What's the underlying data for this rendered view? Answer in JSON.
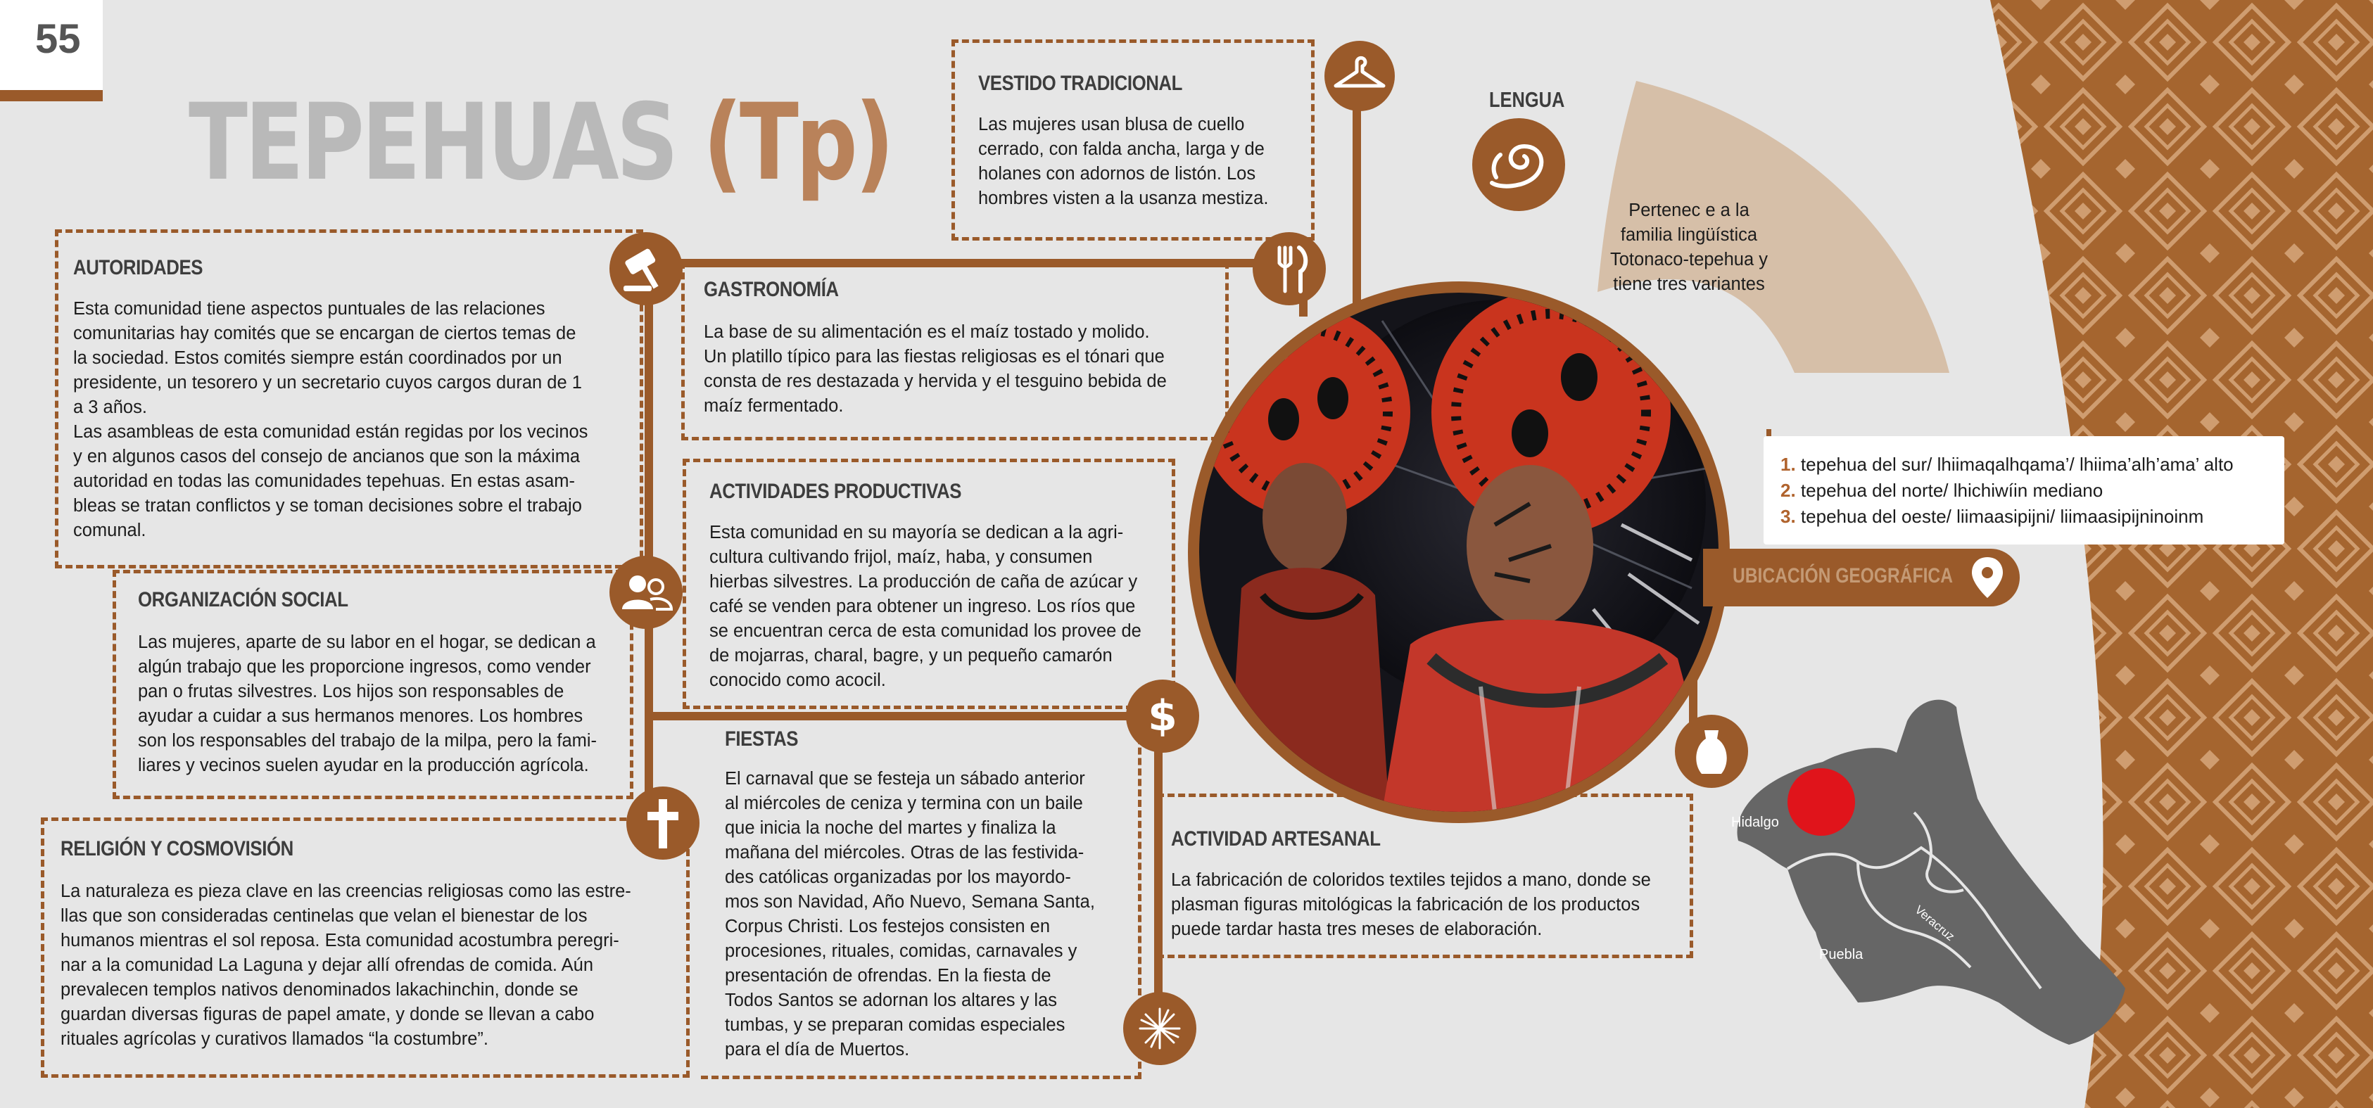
{
  "page_number": "55",
  "title": {
    "main": "TEPEHUAS",
    "abbr": "(Tp)"
  },
  "sections": {
    "vestido": {
      "heading": "VESTIDO TRADICIONAL",
      "text": "Las mujeres usan blusa de cuello\ncerrado, con falda ancha, larga y de\nholanes con adornos de listón. Los\nhombres visten a la usanza mestiza."
    },
    "autoridades": {
      "heading": "AUTORIDADES",
      "text": "Esta comunidad tiene aspectos puntuales de las relaciones\ncomunitarias hay comités que se encargan de ciertos temas de\nla sociedad. Estos comités siempre están coordinados por un\npresidente, un tesorero y un secretario cuyos cargos duran de 1\na 3 años.\nLas asambleas de esta comunidad están regidas por los vecinos\ny en algunos casos del consejo de ancianos que son la máxima\nautoridad en todas las comunidades tepehuas. En estas asam-\nbleas se tratan conflictos y se toman decisiones sobre el trabajo\ncomunal."
    },
    "gastronomia": {
      "heading": "GASTRONOMÍA",
      "text": "La base de su alimentación es el maíz tostado y molido.\nUn platillo típico para las fiestas religiosas es el tónari que\nconsta de res destazada y hervida y el tesguino bebida de\nmaíz fermentado."
    },
    "actividades": {
      "heading": "ACTIVIDADES PRODUCTIVAS",
      "text": "Esta comunidad en su mayoría se dedican a la agri-\ncultura cultivando frijol, maíz, haba, y consumen\nhierbas silvestres. La producción de caña de azúcar y\ncafé se venden para obtener un ingreso. Los ríos que\nse encuentran cerca de esta comunidad los provee de\nde mojarras, charal, bagre, y un pequeño camarón\nconocido como acocil."
    },
    "organizacion": {
      "heading": "ORGANIZACIÓN SOCIAL",
      "text": "Las mujeres, aparte de su labor en el hogar, se dedican a\nalgún trabajo que les proporcione ingresos, como vender\npan o frutas silvestres. Los hijos son responsables de\nayudar a cuidar a sus hermanos menores. Los hombres\nson los responsables del trabajo de la milpa, pero la fami-\nliares y vecinos suelen ayudar  en la producción agrícola."
    },
    "fiestas": {
      "heading": "FIESTAS",
      "text": "El carnaval que se festeja un sábado anterior\nal miércoles de ceniza y termina con un baile\nque inicia la noche del martes y finaliza la\nmañana del miércoles. Otras de las festivida-\ndes católicas organizadas por los mayordo-\nmos son Navidad, Año Nuevo, Semana Santa,\nCorpus Christi. Los festejos consisten en\nprocesiones, rituales, comidas, carnavales y\npresentación de ofrendas. En la fiesta de\nTodos Santos se adornan los altares y las\ntumbas, y se preparan comidas especiales\npara el día de Muertos."
    },
    "religion": {
      "heading": "RELIGIÓN Y COSMOVISIÓN",
      "text": "La naturaleza es pieza clave en las creencias religiosas como las estre-\nllas que son consideradas centinelas que velan el bienestar de los\nhumanos mientras el sol reposa. Esta comunidad acostumbra peregri-\nnar a la comunidad La Laguna y dejar allí ofrendas de comida. Aún\nprevalecen templos nativos denominados lakachinchin, donde se\nguardan diversas figuras de papel amate, y donde se llevan a cabo\nrituales agrícolas y curativos llamados “la costumbre”."
    },
    "artesanal": {
      "heading": "ACTIVIDAD ARTESANAL",
      "text": "La fabricación de coloridos textiles tejidos a mano, donde se\nplasman figuras mitológicas la fabricación de los productos\npuede tardar hasta tres meses de elaboración."
    }
  },
  "lengua": {
    "label": "LENGUA",
    "text": "Pertenec e a la\nfamilia lingüística\nTotonaco-tepehua y\ntiene tres variantes",
    "variants": [
      {
        "num": "1.",
        "text": "tepehua del sur/ lhiimaqalhqama’/  lhiima’alh’ama’ alto"
      },
      {
        "num": "2.",
        "text": "tepehua del norte/ lhichiwíin mediano"
      },
      {
        "num": "3.",
        "text": "tepehua del oeste/ liimaasipijni/ liimaasipijninoinm"
      }
    ]
  },
  "ubicacion": {
    "label": "UBICACIÓN GEOGRÁFICA",
    "map_labels": {
      "hidalgo": "Hidalgo",
      "puebla": "Puebla",
      "veracruz": "Veracruz"
    }
  },
  "icons": [
    "hanger-icon",
    "language-swirl-icon",
    "gavel-icon",
    "fork-knife-icon",
    "people-icon",
    "dollar-icon",
    "cross-icon",
    "vase-icon",
    "fireworks-icon",
    "location-pin-icon"
  ],
  "colors": {
    "brown": "#9a5a2a",
    "title_gray": "#b9b9b9",
    "title_brown": "#b9825a",
    "tan": "#d6bfa8",
    "background": "#e6e6e6",
    "map_gray": "#666666",
    "marker_red": "#e0141b"
  }
}
